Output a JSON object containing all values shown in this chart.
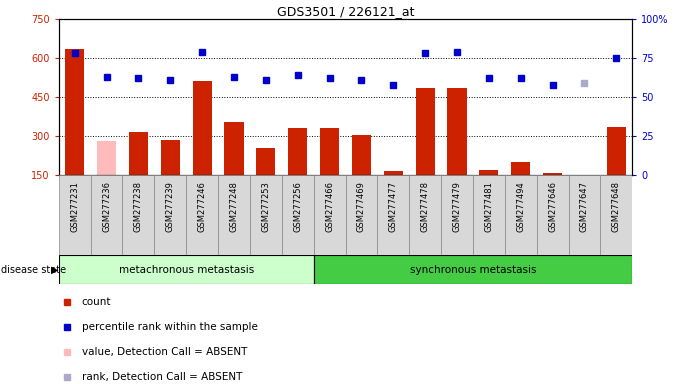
{
  "title": "GDS3501 / 226121_at",
  "samples": [
    "GSM277231",
    "GSM277236",
    "GSM277238",
    "GSM277239",
    "GSM277246",
    "GSM277248",
    "GSM277253",
    "GSM277256",
    "GSM277466",
    "GSM277469",
    "GSM277477",
    "GSM277478",
    "GSM277479",
    "GSM277481",
    "GSM277494",
    "GSM277646",
    "GSM277647",
    "GSM277648"
  ],
  "counts": [
    635,
    280,
    315,
    285,
    510,
    355,
    255,
    330,
    330,
    305,
    165,
    485,
    485,
    170,
    200,
    155,
    148,
    335
  ],
  "absent_count": [
    null,
    280,
    null,
    null,
    null,
    null,
    null,
    null,
    null,
    null,
    null,
    null,
    null,
    null,
    null,
    null,
    null,
    null
  ],
  "percentile_ranks": [
    78,
    63,
    62,
    61,
    79,
    63,
    61,
    64,
    62,
    61,
    58,
    78,
    79,
    62,
    62,
    58,
    59,
    75
  ],
  "absent_rank": [
    null,
    null,
    null,
    null,
    null,
    null,
    null,
    null,
    null,
    null,
    null,
    null,
    null,
    null,
    null,
    null,
    59,
    null
  ],
  "n_metachronous": 8,
  "n_synchronous": 10,
  "group1_label": "metachronous metastasis",
  "group2_label": "synchronous metastasis",
  "disease_state_label": "disease state",
  "ylim_left": [
    150,
    750
  ],
  "ylim_right": [
    0,
    100
  ],
  "yticks_left": [
    150,
    300,
    450,
    600,
    750
  ],
  "yticks_right": [
    0,
    25,
    50,
    75,
    100
  ],
  "bar_color": "#cc2200",
  "bar_color_absent": "#ffbbbb",
  "dot_color": "#0000cc",
  "dot_color_absent": "#aaaacc",
  "group1_color": "#ccffcc",
  "group2_color": "#44cc44",
  "legend_items": [
    {
      "label": "count",
      "color": "#cc2200"
    },
    {
      "label": "percentile rank within the sample",
      "color": "#0000cc"
    },
    {
      "label": "value, Detection Call = ABSENT",
      "color": "#ffbbbb"
    },
    {
      "label": "rank, Detection Call = ABSENT",
      "color": "#aaaacc"
    }
  ],
  "hlines": [
    300,
    450,
    600
  ],
  "background_color": "#ffffff",
  "tick_label_color_left": "#cc2200",
  "tick_label_color_right": "#0000cc"
}
